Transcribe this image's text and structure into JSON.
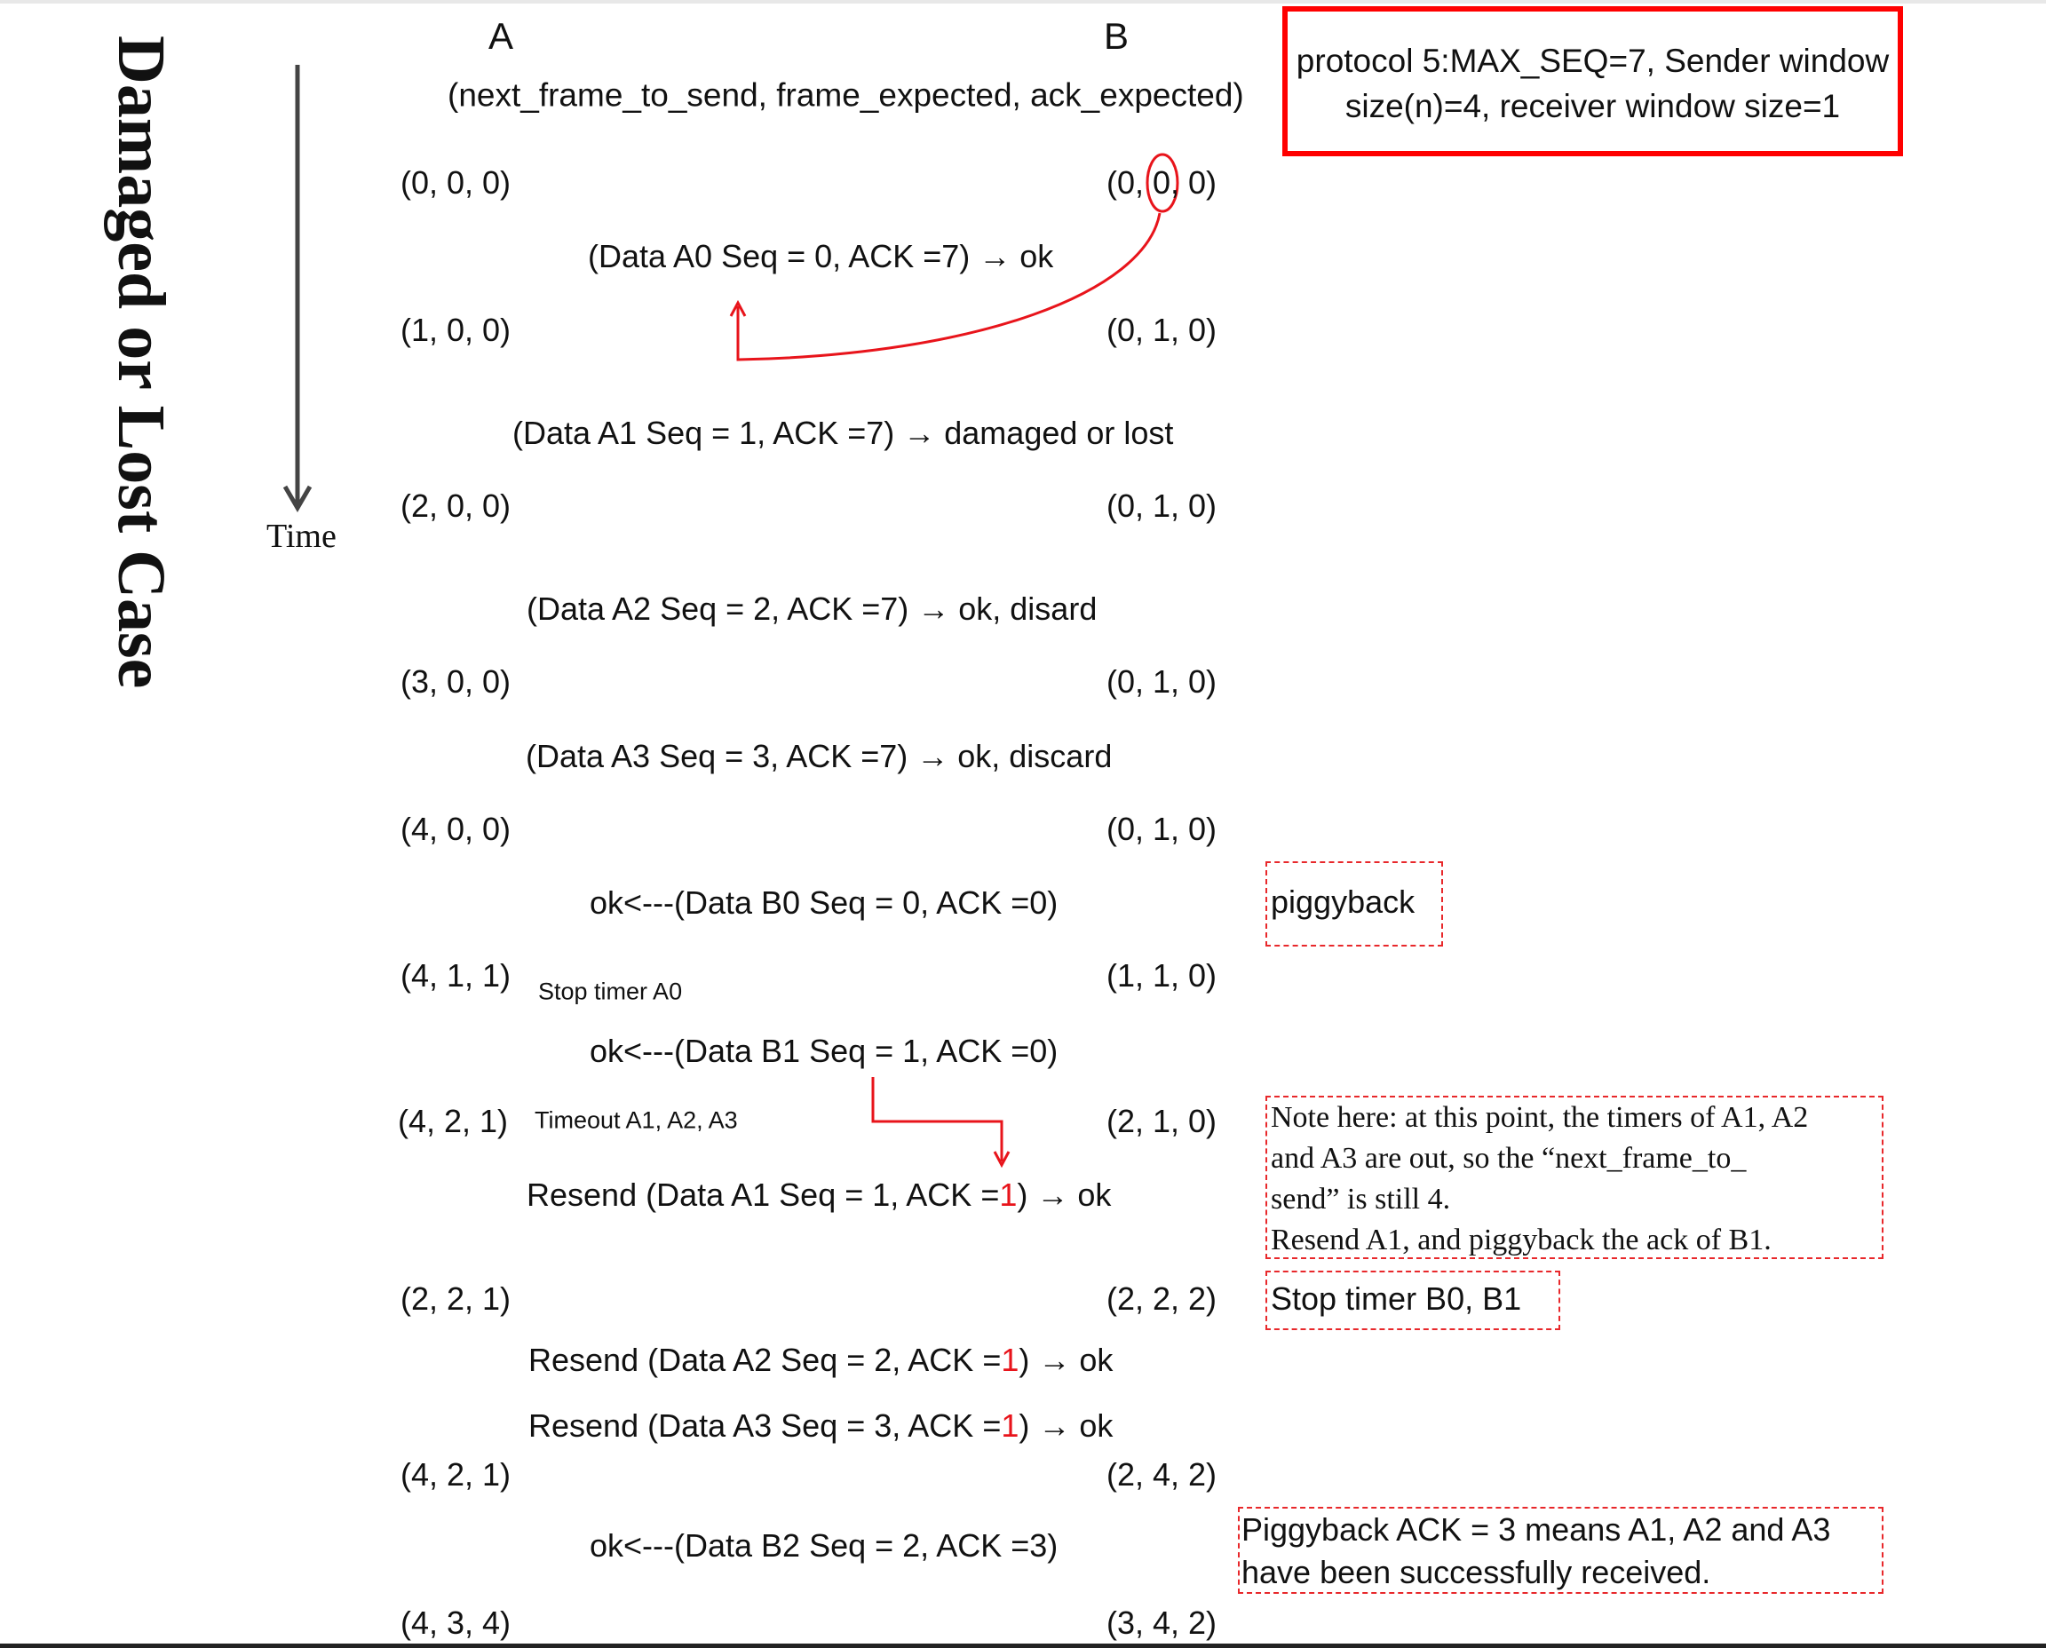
{
  "title": "Damaged or Lost Case",
  "time_label": "Time",
  "columns": {
    "a": "A",
    "b": "B"
  },
  "tuple_header": "(next_frame_to_send, frame_expected, ack_expected)",
  "protocol_box": {
    "line1": "protocol 5:MAX_SEQ=7, Sender window",
    "line2": "size(n)=4, receiver  window size=1"
  },
  "states_a": [
    "(0, 0, 0)",
    "(1, 0, 0)",
    "(2, 0, 0)",
    "(3, 0, 0)",
    "(4, 0, 0)",
    "(4, 1, 1)",
    "(4, 2, 1)",
    "(2, 2, 1)",
    "(4, 2, 1)",
    "(4, 3, 4)"
  ],
  "states_b": [
    "(0, 0, 0)",
    "(0, 1, 0)",
    "(0, 1, 0)",
    "(0, 1, 0)",
    "(0, 1, 0)",
    "(1, 1, 0)",
    "(2, 1, 0)",
    "(2, 2, 2)",
    "(2, 4, 2)",
    "(3, 4, 2)"
  ],
  "messages": [
    {
      "pre": "(Data A0 Seq = 0, ACK =7) → ok",
      "red": "",
      "post": ""
    },
    {
      "pre": "(Data A1 Seq = 1, ACK =7) → damaged or lost",
      "red": "",
      "post": ""
    },
    {
      "pre": "(Data A2 Seq = 2, ACK =7) → ok, disard",
      "red": "",
      "post": ""
    },
    {
      "pre": "(Data A3 Seq = 3, ACK =7) → ok, discard",
      "red": "",
      "post": ""
    },
    {
      "pre": "ok<---(Data B0 Seq = 0, ACK =0)",
      "red": "",
      "post": ""
    },
    {
      "pre": "ok<---(Data B1 Seq = 1, ACK =0)",
      "red": "",
      "post": ""
    },
    {
      "pre": "Resend (Data A1 Seq = 1, ACK =",
      "red": "1",
      "post": ") → ok"
    },
    {
      "pre": "Resend (Data A2 Seq = 2, ACK =",
      "red": "1",
      "post": ") → ok"
    },
    {
      "pre": "Resend (Data A3 Seq = 3, ACK =",
      "red": "1",
      "post": ") → ok"
    },
    {
      "pre": "ok<---(Data B2 Seq = 2, ACK =3)",
      "red": "",
      "post": ""
    }
  ],
  "side_notes": {
    "stop_timer_a0": "Stop timer A0",
    "timeout": "Timeout A1, A2, A3"
  },
  "notes": {
    "piggyback": "piggyback",
    "note_here": [
      "Note here: at this point, the timers of A1, A2",
      "and A3 are out, so the  “next_frame_to_",
      "send”  is still 4.",
      "Resend A1, and piggyback the ack of B1."
    ],
    "stop_timer_b": "Stop timer B0, B1",
    "piggyback_ack": [
      "Piggyback ACK = 3 means A1, A2 and A3",
      "have been successfully received."
    ]
  },
  "colors": {
    "annotation_red": "#e8141b",
    "box_red": "#ff0000"
  }
}
